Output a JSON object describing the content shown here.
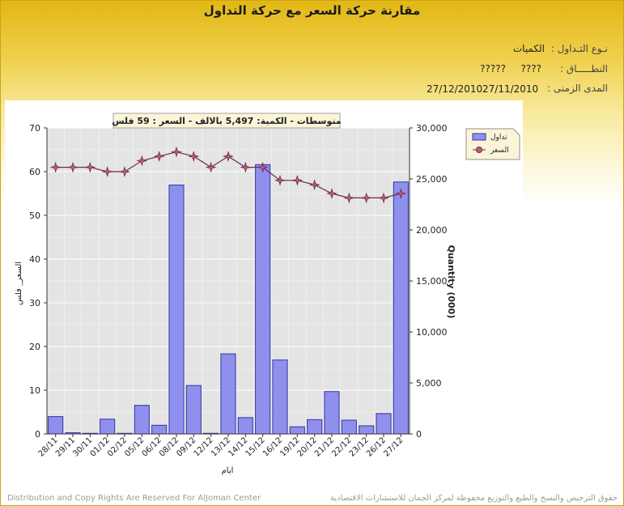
{
  "header": {
    "title": "مقارنة حركة السعر مع حركة التداول",
    "trade_type_label": "نـوع التـداول :",
    "trade_type_value": "الكميات",
    "sector_label": "النطـــــاق :",
    "sector_value_1": "????",
    "sector_value_2": "?????",
    "period_label": "المدى الزمنى :",
    "period_from": "27/11/2010",
    "period_to": "27/12/2010"
  },
  "footer": {
    "left": "Distribution and Copy Rights Are Reserved For AlJoman Center",
    "right": "حقوق الترخيص والنسخ والطبع والتوزيع محفوظة لمركز الجمان للاستشارات الاقتصادية"
  },
  "colors": {
    "bar_fill": "#8f8fee",
    "bar_stroke": "#3434a0",
    "line": "#6b2a4a",
    "marker": "#c05a86",
    "plot_bg": "#e4e4e4"
  },
  "chart_data": {
    "type": "bar",
    "subtitle": "متوسطات - الكمية: 5,497 بالالف  - السعر : 59 فلس",
    "categories": [
      "28/11",
      "29/11",
      "30/11",
      "01/12",
      "02/12",
      "05/12",
      "06/12",
      "08/12",
      "09/12",
      "12/12",
      "13/12",
      "14/12",
      "15/12",
      "16/12",
      "19/12",
      "20/12",
      "21/12",
      "22/12",
      "23/12",
      "26/12",
      "27/12"
    ],
    "xlabel": "ايام",
    "ylabel_left": "السعر_ فلس",
    "ylabel_right": "Quantity (000)",
    "ylim_left": [
      0,
      70
    ],
    "ylim_right": [
      0,
      30000
    ],
    "yticks_left": [
      "0",
      "10",
      "20",
      "30",
      "40",
      "50",
      "60",
      "70"
    ],
    "yticks_right": [
      "0",
      "5,000",
      "10,000",
      "15,000",
      "20,000",
      "25,000",
      "30,000"
    ],
    "grid": true,
    "legend_position": "top-right",
    "series": [
      {
        "name": "تداول",
        "type": "bar",
        "axis": "right",
        "values": [
          1700,
          120,
          60,
          1450,
          60,
          2800,
          850,
          24400,
          4750,
          60,
          7850,
          1600,
          26400,
          7250,
          700,
          1400,
          4150,
          1350,
          800,
          2000,
          24700
        ]
      },
      {
        "name": "السعر",
        "type": "line",
        "axis": "left",
        "values": [
          61,
          61,
          61,
          60,
          60,
          62.5,
          63.5,
          64.5,
          63.5,
          61,
          63.5,
          61,
          61,
          58,
          58,
          57,
          55,
          54,
          54,
          54,
          55
        ]
      }
    ]
  }
}
